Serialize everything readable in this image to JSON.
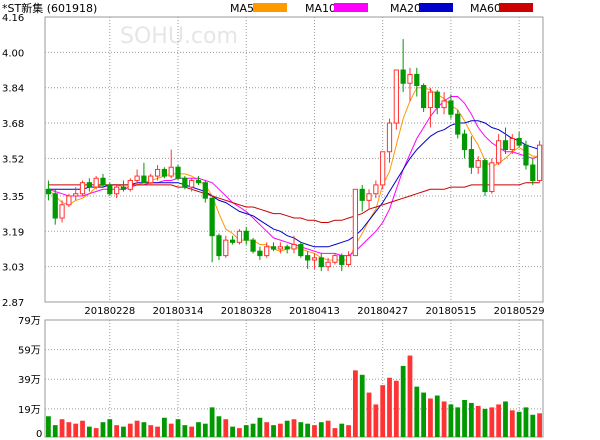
{
  "chart_data": {
    "type": "candlestick",
    "title": "*ST新集 (601918)",
    "watermark": "SOHU.com",
    "legend": [
      {
        "name": "MA5",
        "color": "#ff9900"
      },
      {
        "name": "MA10",
        "color": "#ff00ff"
      },
      {
        "name": "MA20",
        "color": "#0000cc"
      },
      {
        "name": "MA60",
        "color": "#cc0000"
      }
    ],
    "price_axis": {
      "ticks": [
        "4.16",
        "4.00",
        "3.84",
        "3.68",
        "3.52",
        "3.35",
        "3.19",
        "3.03",
        "2.87"
      ],
      "ylim": [
        2.87,
        4.16
      ]
    },
    "volume_axis": {
      "ticks": [
        "79万",
        "59万",
        "39万",
        "19万",
        "0"
      ],
      "ylim": [
        0,
        79
      ]
    },
    "date_labels": [
      "20180228",
      "20180314",
      "20180328",
      "20180413",
      "20180427",
      "20180515",
      "20180529"
    ],
    "colors": {
      "up": "#ff3333",
      "down": "#009900",
      "grid": "#999999"
    },
    "candles": [
      {
        "o": 3.38,
        "h": 3.42,
        "l": 3.33,
        "c": 3.36
      },
      {
        "o": 3.36,
        "h": 3.38,
        "l": 3.22,
        "c": 3.25
      },
      {
        "o": 3.25,
        "h": 3.33,
        "l": 3.23,
        "c": 3.31
      },
      {
        "o": 3.31,
        "h": 3.36,
        "l": 3.3,
        "c": 3.35
      },
      {
        "o": 3.35,
        "h": 3.39,
        "l": 3.33,
        "c": 3.36
      },
      {
        "o": 3.36,
        "h": 3.42,
        "l": 3.35,
        "c": 3.41
      },
      {
        "o": 3.41,
        "h": 3.43,
        "l": 3.37,
        "c": 3.39
      },
      {
        "o": 3.39,
        "h": 3.44,
        "l": 3.38,
        "c": 3.43
      },
      {
        "o": 3.43,
        "h": 3.45,
        "l": 3.39,
        "c": 3.4
      },
      {
        "o": 3.4,
        "h": 3.41,
        "l": 3.35,
        "c": 3.36
      },
      {
        "o": 3.36,
        "h": 3.4,
        "l": 3.34,
        "c": 3.39
      },
      {
        "o": 3.39,
        "h": 3.42,
        "l": 3.37,
        "c": 3.38
      },
      {
        "o": 3.38,
        "h": 3.43,
        "l": 3.37,
        "c": 3.42
      },
      {
        "o": 3.42,
        "h": 3.47,
        "l": 3.4,
        "c": 3.44
      },
      {
        "o": 3.44,
        "h": 3.5,
        "l": 3.41,
        "c": 3.41
      },
      {
        "o": 3.41,
        "h": 3.45,
        "l": 3.4,
        "c": 3.44
      },
      {
        "o": 3.44,
        "h": 3.49,
        "l": 3.42,
        "c": 3.47
      },
      {
        "o": 3.47,
        "h": 3.48,
        "l": 3.43,
        "c": 3.44
      },
      {
        "o": 3.44,
        "h": 3.56,
        "l": 3.43,
        "c": 3.48
      },
      {
        "o": 3.48,
        "h": 3.49,
        "l": 3.42,
        "c": 3.43
      },
      {
        "o": 3.43,
        "h": 3.44,
        "l": 3.38,
        "c": 3.39
      },
      {
        "o": 3.39,
        "h": 3.43,
        "l": 3.37,
        "c": 3.42
      },
      {
        "o": 3.42,
        "h": 3.44,
        "l": 3.4,
        "c": 3.41
      },
      {
        "o": 3.41,
        "h": 3.42,
        "l": 3.32,
        "c": 3.34
      },
      {
        "o": 3.34,
        "h": 3.34,
        "l": 3.05,
        "c": 3.17
      },
      {
        "o": 3.17,
        "h": 3.18,
        "l": 3.06,
        "c": 3.08
      },
      {
        "o": 3.08,
        "h": 3.17,
        "l": 3.07,
        "c": 3.15
      },
      {
        "o": 3.15,
        "h": 3.17,
        "l": 3.13,
        "c": 3.14
      },
      {
        "o": 3.14,
        "h": 3.2,
        "l": 3.13,
        "c": 3.19
      },
      {
        "o": 3.19,
        "h": 3.21,
        "l": 3.13,
        "c": 3.15
      },
      {
        "o": 3.15,
        "h": 3.16,
        "l": 3.09,
        "c": 3.1
      },
      {
        "o": 3.1,
        "h": 3.12,
        "l": 3.06,
        "c": 3.08
      },
      {
        "o": 3.08,
        "h": 3.14,
        "l": 3.07,
        "c": 3.12
      },
      {
        "o": 3.12,
        "h": 3.14,
        "l": 3.1,
        "c": 3.11
      },
      {
        "o": 3.11,
        "h": 3.14,
        "l": 3.09,
        "c": 3.12
      },
      {
        "o": 3.12,
        "h": 3.13,
        "l": 3.09,
        "c": 3.11
      },
      {
        "o": 3.11,
        "h": 3.17,
        "l": 3.09,
        "c": 3.13
      },
      {
        "o": 3.13,
        "h": 3.14,
        "l": 3.07,
        "c": 3.08
      },
      {
        "o": 3.08,
        "h": 3.1,
        "l": 3.02,
        "c": 3.06
      },
      {
        "o": 3.06,
        "h": 3.09,
        "l": 3.02,
        "c": 3.07
      },
      {
        "o": 3.07,
        "h": 3.09,
        "l": 3.01,
        "c": 3.03
      },
      {
        "o": 3.03,
        "h": 3.07,
        "l": 3.01,
        "c": 3.05
      },
      {
        "o": 3.05,
        "h": 3.09,
        "l": 3.04,
        "c": 3.08
      },
      {
        "o": 3.08,
        "h": 3.09,
        "l": 3.01,
        "c": 3.04
      },
      {
        "o": 3.04,
        "h": 3.1,
        "l": 3.03,
        "c": 3.08
      },
      {
        "o": 3.08,
        "h": 3.38,
        "l": 3.08,
        "c": 3.38
      },
      {
        "o": 3.38,
        "h": 3.4,
        "l": 3.28,
        "c": 3.33
      },
      {
        "o": 3.33,
        "h": 3.38,
        "l": 3.29,
        "c": 3.36
      },
      {
        "o": 3.36,
        "h": 3.42,
        "l": 3.34,
        "c": 3.4
      },
      {
        "o": 3.4,
        "h": 3.55,
        "l": 3.38,
        "c": 3.55
      },
      {
        "o": 3.55,
        "h": 3.7,
        "l": 3.5,
        "c": 3.68
      },
      {
        "o": 3.68,
        "h": 3.92,
        "l": 3.65,
        "c": 3.92
      },
      {
        "o": 3.92,
        "h": 4.06,
        "l": 3.82,
        "c": 3.86
      },
      {
        "o": 3.86,
        "h": 3.93,
        "l": 3.78,
        "c": 3.9
      },
      {
        "o": 3.9,
        "h": 3.93,
        "l": 3.8,
        "c": 3.85
      },
      {
        "o": 3.85,
        "h": 3.86,
        "l": 3.73,
        "c": 3.75
      },
      {
        "o": 3.75,
        "h": 3.84,
        "l": 3.66,
        "c": 3.82
      },
      {
        "o": 3.82,
        "h": 3.83,
        "l": 3.72,
        "c": 3.75
      },
      {
        "o": 3.75,
        "h": 3.82,
        "l": 3.72,
        "c": 3.78
      },
      {
        "o": 3.78,
        "h": 3.81,
        "l": 3.7,
        "c": 3.72
      },
      {
        "o": 3.72,
        "h": 3.74,
        "l": 3.61,
        "c": 3.63
      },
      {
        "o": 3.63,
        "h": 3.65,
        "l": 3.52,
        "c": 3.56
      },
      {
        "o": 3.56,
        "h": 3.62,
        "l": 3.45,
        "c": 3.48
      },
      {
        "o": 3.48,
        "h": 3.53,
        "l": 3.45,
        "c": 3.51
      },
      {
        "o": 3.51,
        "h": 3.52,
        "l": 3.35,
        "c": 3.37
      },
      {
        "o": 3.37,
        "h": 3.52,
        "l": 3.36,
        "c": 3.5
      },
      {
        "o": 3.5,
        "h": 3.63,
        "l": 3.49,
        "c": 3.6
      },
      {
        "o": 3.6,
        "h": 3.66,
        "l": 3.54,
        "c": 3.56
      },
      {
        "o": 3.56,
        "h": 3.63,
        "l": 3.54,
        "c": 3.61
      },
      {
        "o": 3.61,
        "h": 3.64,
        "l": 3.57,
        "c": 3.58
      },
      {
        "o": 3.58,
        "h": 3.6,
        "l": 3.47,
        "c": 3.49
      },
      {
        "o": 3.49,
        "h": 3.52,
        "l": 3.4,
        "c": 3.42
      },
      {
        "o": 3.42,
        "h": 3.6,
        "l": 3.41,
        "c": 3.58
      }
    ],
    "ma": {
      "MA5": [
        3.38,
        3.35,
        3.32,
        3.31,
        3.33,
        3.34,
        3.36,
        3.39,
        3.4,
        3.4,
        3.4,
        3.39,
        3.39,
        3.4,
        3.41,
        3.42,
        3.43,
        3.44,
        3.45,
        3.45,
        3.45,
        3.44,
        3.42,
        3.4,
        3.35,
        3.27,
        3.2,
        3.18,
        3.15,
        3.15,
        3.15,
        3.13,
        3.13,
        3.11,
        3.1,
        3.11,
        3.12,
        3.11,
        3.1,
        3.09,
        3.07,
        3.06,
        3.06,
        3.06,
        3.06,
        3.13,
        3.18,
        3.24,
        3.29,
        3.4,
        3.46,
        3.58,
        3.7,
        3.78,
        3.84,
        3.84,
        3.83,
        3.81,
        3.79,
        3.76,
        3.74,
        3.69,
        3.63,
        3.58,
        3.51,
        3.48,
        3.5,
        3.52,
        3.55,
        3.57,
        3.55,
        3.53,
        3.53
      ],
      "MA10": [
        3.38,
        3.37,
        3.36,
        3.35,
        3.35,
        3.35,
        3.36,
        3.37,
        3.38,
        3.38,
        3.38,
        3.38,
        3.39,
        3.4,
        3.4,
        3.41,
        3.41,
        3.42,
        3.42,
        3.43,
        3.43,
        3.43,
        3.43,
        3.42,
        3.41,
        3.38,
        3.35,
        3.32,
        3.3,
        3.28,
        3.25,
        3.22,
        3.19,
        3.16,
        3.15,
        3.14,
        3.13,
        3.12,
        3.11,
        3.1,
        3.09,
        3.09,
        3.09,
        3.08,
        3.08,
        3.1,
        3.13,
        3.16,
        3.19,
        3.23,
        3.29,
        3.38,
        3.47,
        3.54,
        3.61,
        3.66,
        3.71,
        3.75,
        3.78,
        3.8,
        3.8,
        3.77,
        3.72,
        3.66,
        3.62,
        3.59,
        3.57,
        3.55,
        3.55,
        3.54,
        3.53,
        3.52,
        3.53
      ],
      "MA20": [
        3.38,
        3.38,
        3.38,
        3.38,
        3.38,
        3.38,
        3.39,
        3.39,
        3.39,
        3.4,
        3.4,
        3.4,
        3.4,
        3.41,
        3.41,
        3.41,
        3.41,
        3.41,
        3.41,
        3.41,
        3.4,
        3.39,
        3.38,
        3.37,
        3.35,
        3.33,
        3.32,
        3.3,
        3.28,
        3.27,
        3.26,
        3.24,
        3.22,
        3.2,
        3.19,
        3.17,
        3.16,
        3.14,
        3.13,
        3.12,
        3.12,
        3.12,
        3.13,
        3.14,
        3.15,
        3.17,
        3.2,
        3.24,
        3.28,
        3.32,
        3.37,
        3.42,
        3.47,
        3.52,
        3.56,
        3.59,
        3.62,
        3.64,
        3.65,
        3.67,
        3.68,
        3.68,
        3.69,
        3.69,
        3.68,
        3.66,
        3.65,
        3.63,
        3.61,
        3.6,
        3.58,
        3.57,
        3.56
      ],
      "MA60": [
        3.4,
        3.4,
        3.4,
        3.4,
        3.4,
        3.4,
        3.4,
        3.4,
        3.4,
        3.4,
        3.4,
        3.4,
        3.4,
        3.4,
        3.4,
        3.4,
        3.4,
        3.4,
        3.4,
        3.39,
        3.39,
        3.38,
        3.37,
        3.36,
        3.35,
        3.34,
        3.33,
        3.32,
        3.31,
        3.3,
        3.3,
        3.29,
        3.28,
        3.27,
        3.27,
        3.26,
        3.25,
        3.25,
        3.24,
        3.24,
        3.23,
        3.23,
        3.24,
        3.24,
        3.25,
        3.26,
        3.27,
        3.29,
        3.3,
        3.31,
        3.32,
        3.33,
        3.34,
        3.35,
        3.36,
        3.37,
        3.38,
        3.38,
        3.38,
        3.39,
        3.39,
        3.39,
        3.4,
        3.4,
        3.4,
        3.4,
        3.4,
        3.4,
        3.4,
        3.4,
        3.41,
        3.41,
        3.41
      ]
    },
    "volume": [
      14,
      8,
      12,
      10,
      9,
      11,
      7,
      6,
      10,
      12,
      8,
      7,
      9,
      11,
      10,
      8,
      7,
      13,
      9,
      12,
      8,
      7,
      10,
      9,
      20,
      14,
      12,
      7,
      6,
      8,
      9,
      13,
      10,
      8,
      9,
      11,
      12,
      10,
      9,
      8,
      10,
      11,
      6,
      9,
      8,
      45,
      42,
      30,
      22,
      35,
      40,
      38,
      48,
      55,
      34,
      30,
      26,
      28,
      24,
      22,
      20,
      25,
      23,
      21,
      19,
      20,
      22,
      24,
      18,
      17,
      20,
      15,
      16
    ]
  }
}
